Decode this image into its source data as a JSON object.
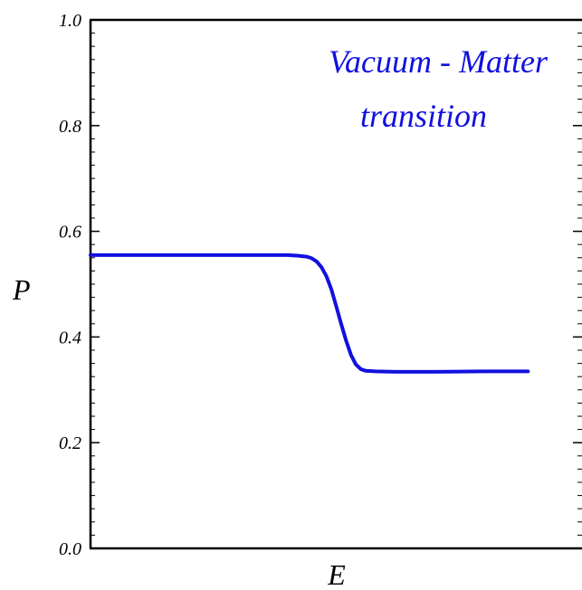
{
  "chart_data": {
    "type": "line",
    "title": "",
    "xlabel": "E",
    "ylabel": "P",
    "ylim": [
      0.0,
      1.0
    ],
    "xlim": [
      0.0,
      1.0
    ],
    "y_ticks": [
      "0.0",
      "0.2",
      "0.4",
      "0.6",
      "0.8",
      "1.0"
    ],
    "x_ticks": [],
    "grid": false,
    "annotation_lines": [
      "Vacuum - Matter",
      "transition"
    ],
    "annotation_color": "#1010e0",
    "series": [
      {
        "color": "#1010e0",
        "x": [
          0.0,
          0.1,
          0.2,
          0.3,
          0.35,
          0.4,
          0.42,
          0.44,
          0.45,
          0.46,
          0.47,
          0.48,
          0.49,
          0.5,
          0.51,
          0.52,
          0.53,
          0.54,
          0.55,
          0.56,
          0.58,
          0.62,
          0.7,
          0.8,
          0.89
        ],
        "y": [
          0.555,
          0.555,
          0.555,
          0.555,
          0.555,
          0.555,
          0.554,
          0.552,
          0.549,
          0.543,
          0.532,
          0.515,
          0.49,
          0.458,
          0.425,
          0.393,
          0.366,
          0.348,
          0.339,
          0.336,
          0.335,
          0.334,
          0.334,
          0.335,
          0.335
        ]
      }
    ]
  }
}
